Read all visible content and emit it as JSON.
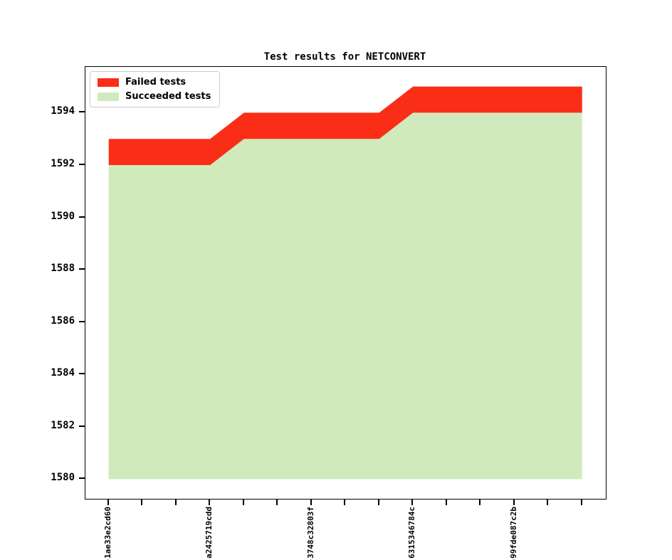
{
  "chart_data": {
    "type": "area",
    "stacked": true,
    "title": "Test results for NETCONVERT",
    "xlabel": "",
    "ylabel": "",
    "grid": false,
    "legend_position": "upper left",
    "ylim": [
      1579.25,
      1595.75
    ],
    "y_ticks": [
      1594,
      1592,
      1590,
      1588,
      1586,
      1584,
      1582,
      1580
    ],
    "baseline": 1580,
    "x_tick_labels": [
      "-1ae33e2cd60",
      "",
      "",
      "a2425719cdd",
      "",
      "",
      "-3748c32803f",
      "",
      "",
      "6315346784c",
      "",
      "",
      "-99fde087c2b",
      "",
      ""
    ],
    "series": [
      {
        "name": "Succeeded tests",
        "color": "#d0eabc",
        "values": [
          1592,
          1592,
          1592,
          1592,
          1593,
          1593,
          1593,
          1593,
          1593,
          1594,
          1594,
          1594,
          1594,
          1594,
          1594
        ]
      },
      {
        "name": "Failed tests",
        "color": "#fa2e17",
        "values": [
          1,
          1,
          1,
          1,
          1,
          1,
          1,
          1,
          1,
          1,
          1,
          1,
          1,
          1,
          1
        ]
      }
    ]
  },
  "legend": {
    "items": [
      {
        "label": "Failed tests",
        "color": "#fa2e17"
      },
      {
        "label": "Succeeded tests",
        "color": "#d0eabc"
      }
    ]
  }
}
